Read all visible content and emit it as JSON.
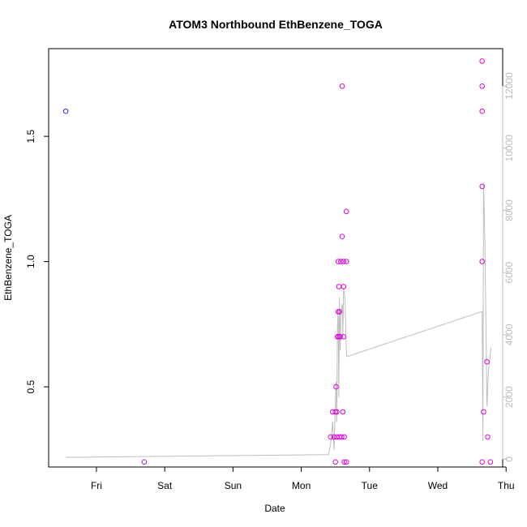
{
  "chart_data": {
    "type": "scatter",
    "title": "ATOM3 Northbound EthBenzene_TOGA",
    "xlabel": "Date",
    "ylabel": "EthBenzene_TOGA",
    "x_unit": "days",
    "xlim": [
      -0.7,
      5.95
    ],
    "ylim": [
      0.18,
      1.85
    ],
    "y2lim": [
      -250,
      13200
    ],
    "x_ticks": [
      {
        "value": 0,
        "label": "Fri"
      },
      {
        "value": 1,
        "label": "Sat"
      },
      {
        "value": 2,
        "label": "Sun"
      },
      {
        "value": 3,
        "label": "Mon"
      },
      {
        "value": 4,
        "label": "Tue"
      },
      {
        "value": 5,
        "label": "Wed"
      },
      {
        "value": 6,
        "label": "Thu"
      }
    ],
    "y_ticks": [
      {
        "value": 0.5,
        "label": "0.5"
      },
      {
        "value": 1.0,
        "label": "1.0"
      },
      {
        "value": 1.5,
        "label": "1.5"
      }
    ],
    "y2_ticks": [
      {
        "value": 0,
        "label": "0"
      },
      {
        "value": 2000,
        "label": "2000"
      },
      {
        "value": 4000,
        "label": "4000"
      },
      {
        "value": 6000,
        "label": "6000"
      },
      {
        "value": 8000,
        "label": "8000"
      },
      {
        "value": 10000,
        "label": "10000"
      },
      {
        "value": 12000,
        "label": "12000"
      }
    ],
    "colors": {
      "blue": "#2b2bd6",
      "magenta": "#e000e0",
      "purple": "#a020d0",
      "line": "#bdbdbd",
      "frame": "#000000"
    },
    "points": [
      {
        "x": -0.45,
        "y": 1.6,
        "c": "blue"
      },
      {
        "x": 0.7,
        "y": 0.2,
        "c": "purple"
      },
      {
        "x": 3.43,
        "y": 0.3,
        "c": "magenta"
      },
      {
        "x": 3.46,
        "y": 0.4,
        "c": "magenta"
      },
      {
        "x": 3.48,
        "y": 0.3,
        "c": "magenta"
      },
      {
        "x": 3.5,
        "y": 0.2,
        "c": "magenta"
      },
      {
        "x": 3.5,
        "y": 0.4,
        "c": "magenta"
      },
      {
        "x": 3.51,
        "y": 0.5,
        "c": "magenta"
      },
      {
        "x": 3.52,
        "y": 0.3,
        "c": "magenta"
      },
      {
        "x": 3.52,
        "y": 0.4,
        "c": "magenta"
      },
      {
        "x": 3.53,
        "y": 0.7,
        "c": "magenta"
      },
      {
        "x": 3.54,
        "y": 0.8,
        "c": "magenta"
      },
      {
        "x": 3.54,
        "y": 1.0,
        "c": "magenta"
      },
      {
        "x": 3.55,
        "y": 0.9,
        "c": "magenta"
      },
      {
        "x": 3.55,
        "y": 0.7,
        "c": "magenta"
      },
      {
        "x": 3.56,
        "y": 0.8,
        "c": "magenta"
      },
      {
        "x": 3.56,
        "y": 0.3,
        "c": "magenta"
      },
      {
        "x": 3.57,
        "y": 0.7,
        "c": "magenta"
      },
      {
        "x": 3.58,
        "y": 1.0,
        "c": "magenta"
      },
      {
        "x": 3.59,
        "y": 0.3,
        "c": "magenta"
      },
      {
        "x": 3.6,
        "y": 1.7,
        "c": "magenta"
      },
      {
        "x": 3.6,
        "y": 1.1,
        "c": "magenta"
      },
      {
        "x": 3.61,
        "y": 0.4,
        "c": "magenta"
      },
      {
        "x": 3.62,
        "y": 0.9,
        "c": "magenta"
      },
      {
        "x": 3.62,
        "y": 1.0,
        "c": "magenta"
      },
      {
        "x": 3.62,
        "y": 0.7,
        "c": "magenta"
      },
      {
        "x": 3.63,
        "y": 0.3,
        "c": "magenta"
      },
      {
        "x": 3.63,
        "y": 0.2,
        "c": "magenta"
      },
      {
        "x": 3.66,
        "y": 1.2,
        "c": "magenta"
      },
      {
        "x": 3.66,
        "y": 0.2,
        "c": "magenta"
      },
      {
        "x": 3.66,
        "y": 1.0,
        "c": "magenta"
      },
      {
        "x": 5.65,
        "y": 1.8,
        "c": "magenta"
      },
      {
        "x": 5.65,
        "y": 1.7,
        "c": "magenta"
      },
      {
        "x": 5.65,
        "y": 1.6,
        "c": "magenta"
      },
      {
        "x": 5.65,
        "y": 1.3,
        "c": "magenta"
      },
      {
        "x": 5.65,
        "y": 1.0,
        "c": "magenta"
      },
      {
        "x": 5.65,
        "y": 0.2,
        "c": "magenta"
      },
      {
        "x": 5.67,
        "y": 0.4,
        "c": "magenta"
      },
      {
        "x": 5.72,
        "y": 0.6,
        "c": "magenta"
      },
      {
        "x": 5.73,
        "y": 0.3,
        "c": "magenta"
      },
      {
        "x": 5.77,
        "y": 0.2,
        "c": "magenta"
      }
    ],
    "line_series": [
      [
        -0.45,
        60
      ],
      [
        3.4,
        150
      ],
      [
        3.43,
        500
      ],
      [
        3.46,
        1200
      ],
      [
        3.48,
        300
      ],
      [
        3.5,
        1800
      ],
      [
        3.51,
        2500
      ],
      [
        3.52,
        1200
      ],
      [
        3.53,
        4200
      ],
      [
        3.54,
        4800
      ],
      [
        3.55,
        2000
      ],
      [
        3.56,
        5200
      ],
      [
        3.57,
        3500
      ],
      [
        3.58,
        4700
      ],
      [
        3.6,
        5000
      ],
      [
        3.61,
        4000
      ],
      [
        3.62,
        5500
      ],
      [
        3.64,
        5200
      ],
      [
        3.66,
        3500
      ],
      [
        3.67,
        3300
      ],
      [
        5.65,
        4750
      ],
      [
        5.66,
        600
      ],
      [
        5.67,
        8900
      ],
      [
        5.69,
        7000
      ],
      [
        5.72,
        1700
      ],
      [
        5.74,
        2800
      ],
      [
        5.78,
        3600
      ]
    ]
  }
}
